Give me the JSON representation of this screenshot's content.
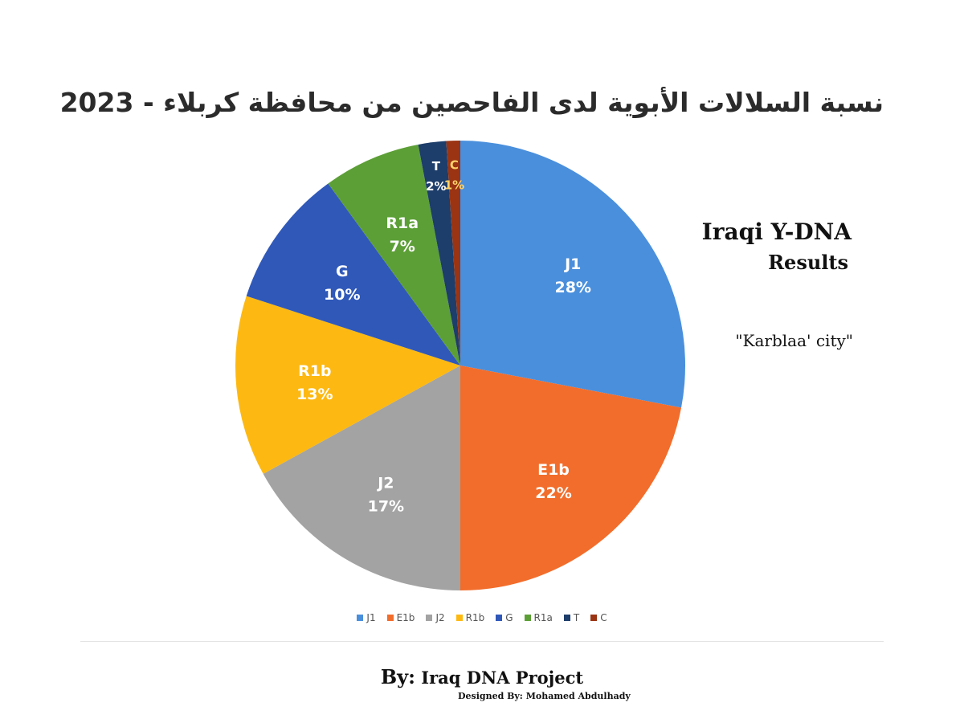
{
  "chart_data": {
    "type": "pie",
    "title": "نسبة السلالات الأبوية لدى الفاحصين من محافظة كربلاء - 2023",
    "categories": [
      "J1",
      "E1b",
      "J2",
      "R1b",
      "G",
      "R1a",
      "T",
      "C"
    ],
    "values": [
      28,
      22,
      17,
      13,
      10,
      7,
      2,
      1
    ],
    "labels": [
      "28%",
      "22%",
      "17%",
      "13%",
      "10%",
      "7%",
      "2%",
      "1%"
    ],
    "colors": [
      "#4a8fdc",
      "#f26d2b",
      "#a3a3a3",
      "#fdb912",
      "#2f58b9",
      "#5c9f36",
      "#1d3d6a",
      "#9a3412"
    ],
    "label_colors": [
      "#ffffff",
      "#ffffff",
      "#ffffff",
      "#ffffff",
      "#ffffff",
      "#ffffff",
      "#ffffff",
      "#ffd36b"
    ],
    "legend_position": "bottom",
    "start_angle_deg": 0,
    "direction": "clockwise"
  },
  "side_text": {
    "heading_line1": "Iraqi Y-DNA",
    "heading_line2": "Results",
    "city": "\"Karblaa' city\""
  },
  "footer": {
    "by_label": "By:",
    "project": "Iraq DNA Project",
    "designed_by": "Designed By: Mohamed Abdulhady"
  }
}
